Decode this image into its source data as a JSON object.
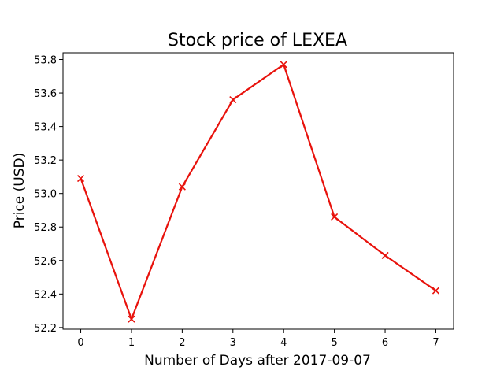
{
  "chart_data": {
    "type": "line",
    "title": "Stock price of LEXEA",
    "xlabel": "Number of Days after 2017-09-07",
    "ylabel": "Price (USD)",
    "x": [
      0,
      1,
      2,
      3,
      4,
      5,
      6,
      7
    ],
    "series": [
      {
        "values": [
          53.09,
          52.25,
          53.04,
          53.56,
          53.77,
          52.86,
          52.63,
          52.42
        ]
      }
    ],
    "xlim": [
      -0.35,
      7.35
    ],
    "ylim": [
      52.19,
      53.84
    ],
    "xticks": [
      0,
      1,
      2,
      3,
      4,
      5,
      6,
      7
    ],
    "xtick_labels": [
      "0",
      "1",
      "2",
      "3",
      "4",
      "5",
      "6",
      "7"
    ],
    "yticks": [
      52.2,
      52.4,
      52.6,
      52.8,
      53.0,
      53.2,
      53.4,
      53.6,
      53.8
    ],
    "ytick_labels": [
      "52.2",
      "52.4",
      "52.6",
      "52.8",
      "53.0",
      "53.2",
      "53.4",
      "53.6",
      "53.8"
    ],
    "grid": false,
    "marker": "x",
    "colors": {
      "line": "#e8120c",
      "axes": "#000000"
    }
  }
}
